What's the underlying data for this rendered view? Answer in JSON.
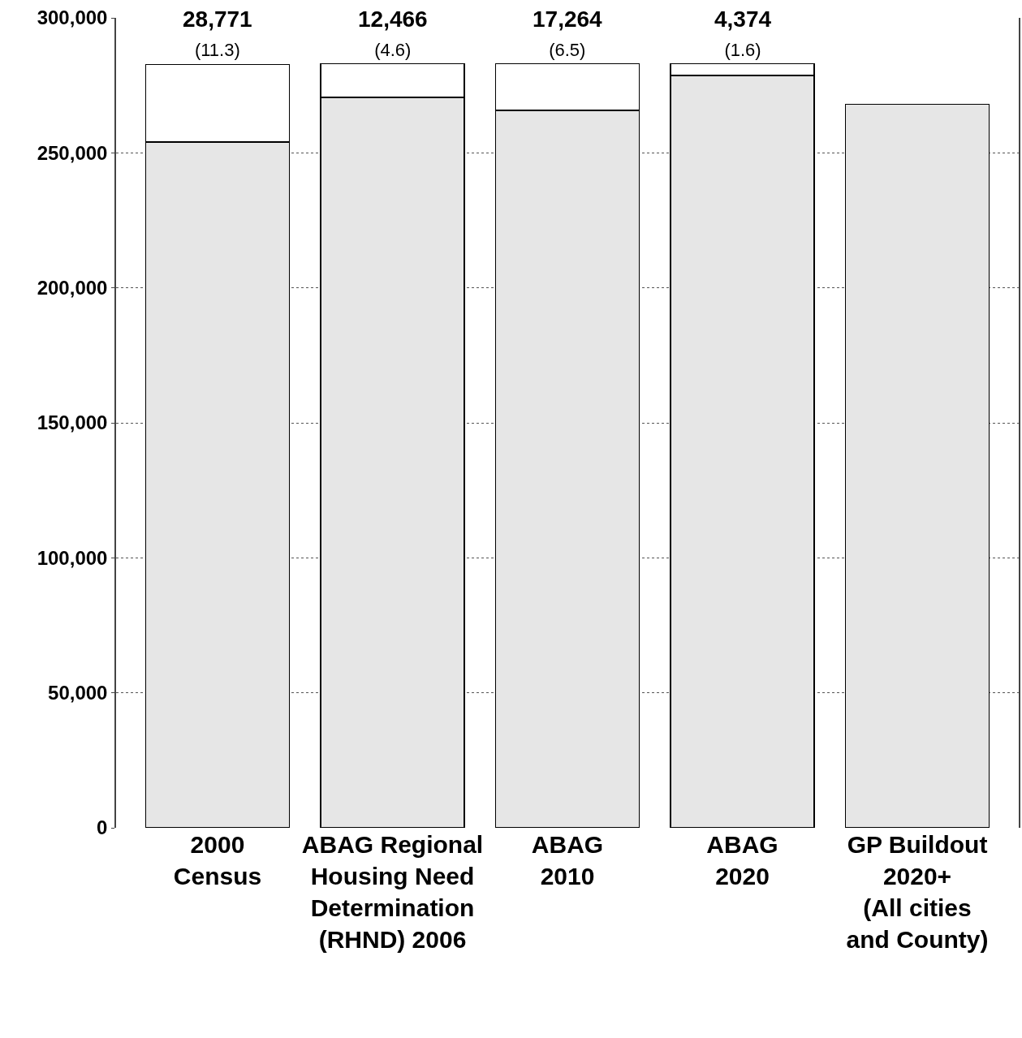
{
  "chart_data": {
    "type": "bar",
    "stacked": true,
    "categories": [
      "2000\nCensus",
      "ABAG Regional\nHousing Need\nDetermination\n(RHND) 2006",
      "ABAG\n2010",
      "ABAG\n2020",
      "GP Buildout\n2020+\n(All cities\nand County)"
    ],
    "series": [
      {
        "color": "#e6e6e6",
        "values": [
          254000,
          270500,
          265700,
          278600,
          268000
        ]
      },
      {
        "color": "#ffffff",
        "values": [
          28771,
          12466,
          17264,
          4374,
          null
        ],
        "value_labels": [
          "28,771\n(11.3)",
          "12,466\n(4.6)",
          "17,264\n(6.5)",
          "4,374\n(1.6)",
          null
        ]
      }
    ],
    "ylim": [
      0,
      300000
    ],
    "yticks": [
      {
        "value": 0,
        "label": "0"
      },
      {
        "value": 50000,
        "label": "50,000"
      },
      {
        "value": 100000,
        "label": "100,000"
      },
      {
        "value": 150000,
        "label": "150,000"
      },
      {
        "value": 200000,
        "label": "200,000"
      },
      {
        "value": 250000,
        "label": "250,000"
      },
      {
        "value": 300000,
        "label": "300,000"
      }
    ],
    "grid": "y"
  }
}
